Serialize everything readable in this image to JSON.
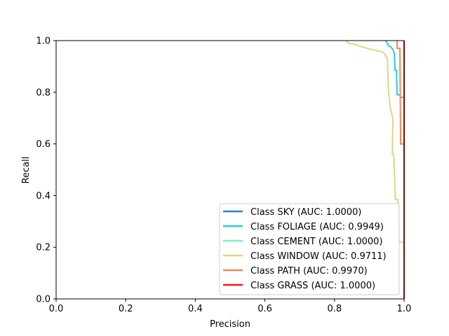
{
  "chart_data": {
    "type": "line",
    "title": "",
    "xlabel": "Precision",
    "ylabel": "Recall",
    "xlim": [
      0.0,
      1.0
    ],
    "ylim": [
      0.0,
      1.0
    ],
    "x_ticks": [
      "0.0",
      "0.2",
      "0.4",
      "0.6",
      "0.8",
      "1.0"
    ],
    "y_ticks": [
      "0.0",
      "0.2",
      "0.4",
      "0.6",
      "0.8",
      "1.0"
    ],
    "grid": false,
    "legend_position": "lower-right",
    "series": [
      {
        "name": "Class SKY (AUC: 1.0000)",
        "color": "#2a7fdc",
        "points": [
          [
            1.0,
            1.0
          ],
          [
            1.0,
            0.0
          ]
        ]
      },
      {
        "name": "Class FOLIAGE (AUC: 0.9949)",
        "color": "#26d0d0",
        "points": [
          [
            0.947,
            1.0
          ],
          [
            0.952,
            0.99
          ],
          [
            0.955,
            0.98
          ],
          [
            0.962,
            0.975
          ],
          [
            0.968,
            0.965
          ],
          [
            0.972,
            0.95
          ],
          [
            0.974,
            0.885
          ],
          [
            0.978,
            0.885
          ],
          [
            0.98,
            0.79
          ],
          [
            0.988,
            0.79
          ],
          [
            0.99,
            0.78
          ],
          [
            1.0,
            0.78
          ],
          [
            1.0,
            0.0
          ]
        ]
      },
      {
        "name": "Class CEMENT (AUC: 1.0000)",
        "color": "#7ff5c0",
        "points": [
          [
            1.0,
            1.0
          ],
          [
            1.0,
            0.0
          ]
        ]
      },
      {
        "name": "Class WINDOW (AUC: 0.9711)",
        "color": "#d3dc83",
        "points": [
          [
            0.833,
            1.0
          ],
          [
            0.84,
            0.99
          ],
          [
            0.86,
            0.985
          ],
          [
            0.88,
            0.975
          ],
          [
            0.9,
            0.968
          ],
          [
            0.92,
            0.962
          ],
          [
            0.94,
            0.955
          ],
          [
            0.952,
            0.93
          ],
          [
            0.955,
            0.81
          ],
          [
            0.96,
            0.74
          ],
          [
            0.968,
            0.7
          ],
          [
            0.966,
            0.56
          ],
          [
            0.97,
            0.56
          ],
          [
            0.975,
            0.385
          ],
          [
            0.982,
            0.385
          ],
          [
            0.985,
            0.22
          ],
          [
            1.0,
            0.22
          ],
          [
            1.0,
            0.0
          ]
        ]
      },
      {
        "name": "Class PATH (AUC: 0.9970)",
        "color": "#f2874f",
        "points": [
          [
            0.98,
            1.0
          ],
          [
            0.98,
            0.97
          ],
          [
            0.988,
            0.97
          ],
          [
            0.99,
            0.6
          ],
          [
            1.0,
            0.6
          ],
          [
            1.0,
            0.0
          ]
        ]
      },
      {
        "name": "Class GRASS (AUC: 1.0000)",
        "color": "#ed1c1c",
        "points": [
          [
            1.0,
            1.0
          ],
          [
            1.0,
            0.0
          ]
        ]
      }
    ]
  }
}
